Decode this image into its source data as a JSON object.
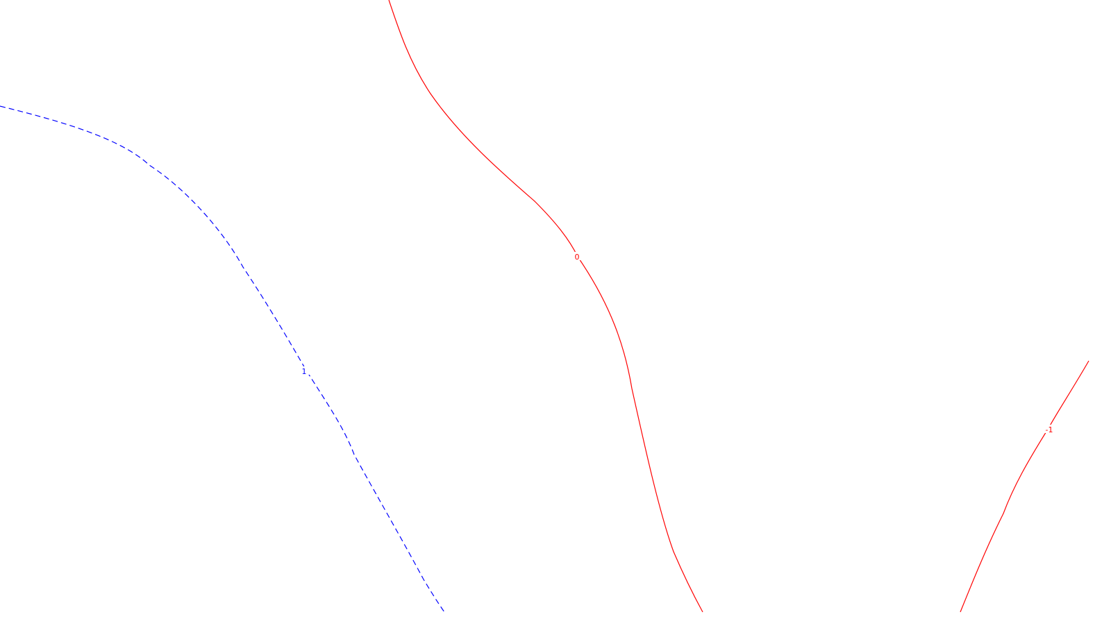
{
  "chart_data": {
    "type": "contour",
    "grid": false,
    "colors": {
      "background": "#ffffff",
      "positive": "#0000ff",
      "zero_and_negative": "#ff0000"
    },
    "contours": [
      {
        "level": "1",
        "color": "#0000ff",
        "dashed": true,
        "label": "1"
      },
      {
        "level": "0",
        "color": "#ff0000",
        "dashed": false,
        "label": "0"
      },
      {
        "level": "-1",
        "color": "#ff0000",
        "dashed": false,
        "label": "-1"
      }
    ]
  }
}
